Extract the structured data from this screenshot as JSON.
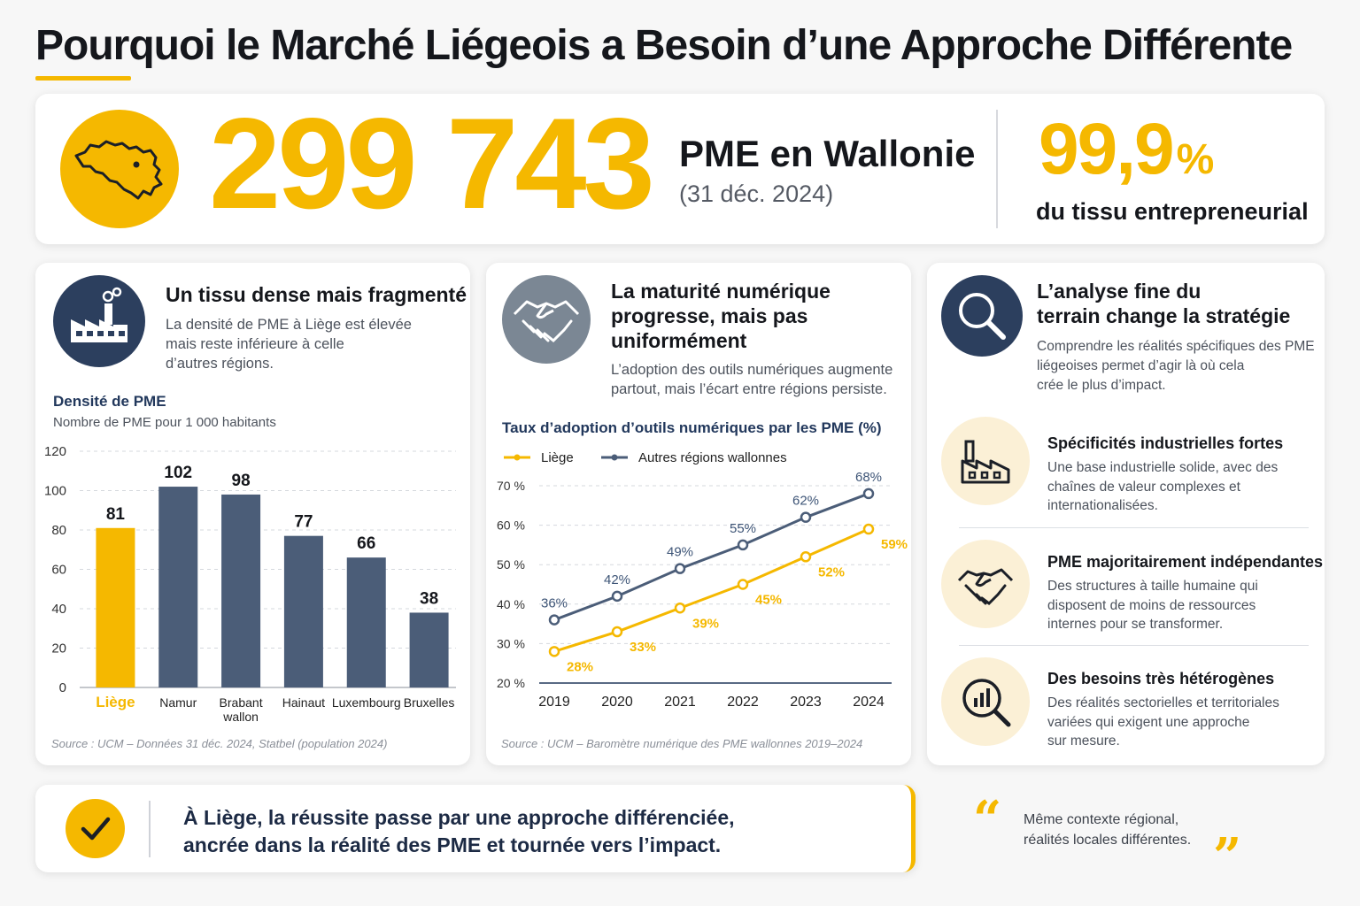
{
  "header": {
    "title": "Pourquoi le Marché Liégeois a Besoin d’une Approche Différente"
  },
  "hero": {
    "big_number": "299 743",
    "label": "PME en Wallonie",
    "sublabel": "(31 déc. 2024)",
    "percent_value": "99,9",
    "percent_sign": "%",
    "percent_label": "du tissu entrepreneurial",
    "icon": "belgium-map-icon"
  },
  "panel_density": {
    "icon": "factory-icon",
    "title": "Un tissu dense mais fragmenté",
    "text": [
      "La densité de PME à Liège est élevée",
      "mais reste inférieure à celle",
      "d’autres régions."
    ],
    "source": "Source : UCM – Données 31 déc. 2024, Statbel (population 2024)"
  },
  "panel_digital": {
    "icon": "handshake-icon",
    "title": [
      "La maturité numérique",
      "progresse, mais pas",
      "uniformément"
    ],
    "text": [
      "L’adoption des outils numériques augmente",
      "partout, mais l’écart entre régions persiste."
    ],
    "source": "Source : UCM – Baromètre numérique des PME wallonnes 2019–2024"
  },
  "panel_analysis": {
    "icon": "magnifier-icon",
    "title": [
      "L’analyse fine du",
      "terrain change la stratégie"
    ],
    "text": [
      "Comprendre les réalités spécifiques des PME",
      "liégeoises permet d’agir là où cela",
      "crée le plus d’impact."
    ],
    "features": [
      {
        "icon": "factory-icon",
        "title": "Spécificités industrielles fortes",
        "text": [
          "Une base industrielle solide, avec des",
          "chaînes de valeur complexes et",
          "internationalisées."
        ]
      },
      {
        "icon": "handshake-icon",
        "title": "PME majoritairement indépendantes",
        "text": [
          "Des structures à taille humaine qui",
          "disposent de moins de ressources",
          "internes pour se transformer."
        ]
      },
      {
        "icon": "chart-magnifier-icon",
        "title": "Des besoins très hétérogènes",
        "text": [
          "Des réalités sectorielles et territoriales",
          "variées qui exigent une approche",
          "sur mesure."
        ]
      }
    ]
  },
  "bottom": {
    "icon": "check-icon",
    "text": [
      "À Liège, la réussite passe par une approche différenciée,",
      "ancrée dans la réalité des PME et tournée vers l’impact."
    ],
    "quote_open": "“",
    "quote_close": "”",
    "quote": [
      "Même contexte régional,",
      "réalités locales différentes."
    ]
  },
  "colors": {
    "accent": "#f5b800",
    "navy": "#4b5d78",
    "dark_navy": "#22385c",
    "grey_icon": "#7b8794"
  },
  "chart_data": [
    {
      "type": "bar",
      "title": "Densité de PME",
      "subtitle": "Nombre de PME pour 1 000 habitants",
      "categories": [
        "Liège",
        "Namur",
        "Brabant wallon",
        "Hainaut",
        "Luxembourg",
        "Bruxelles"
      ],
      "values": [
        81,
        102,
        98,
        77,
        66,
        38
      ],
      "highlight": "Liège",
      "ylim": [
        0,
        120
      ],
      "yticks": [
        0,
        20,
        40,
        60,
        80,
        100,
        120
      ],
      "grid": true
    },
    {
      "type": "line",
      "title": "Taux d’adoption d’outils numériques par les PME (%)",
      "x": [
        2019,
        2020,
        2021,
        2022,
        2023,
        2024
      ],
      "series": [
        {
          "name": "Liège",
          "values": [
            28,
            33,
            39,
            45,
            52,
            59
          ],
          "color": "#f5b800"
        },
        {
          "name": "Autres régions wallonnes",
          "values": [
            36,
            42,
            49,
            55,
            62,
            68
          ],
          "color": "#4b5d78"
        }
      ],
      "ylim": [
        20,
        70
      ],
      "yticks": [
        20,
        30,
        40,
        50,
        60,
        70
      ],
      "y_tick_suffix": " %",
      "label_suffix": "%",
      "legend": "top-left",
      "grid": true
    }
  ]
}
